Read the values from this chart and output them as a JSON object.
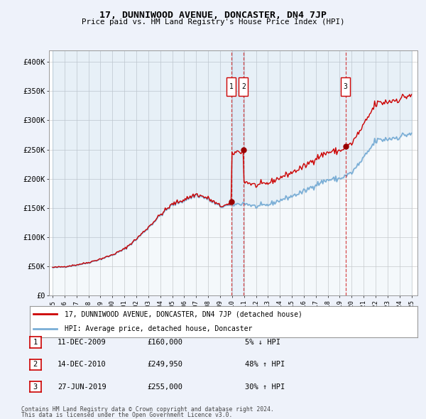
{
  "title": "17, DUNNIWOOD AVENUE, DONCASTER, DN4 7JP",
  "subtitle": "Price paid vs. HM Land Registry's House Price Index (HPI)",
  "legend_line1": "17, DUNNIWOOD AVENUE, DONCASTER, DN4 7JP (detached house)",
  "legend_line2": "HPI: Average price, detached house, Doncaster",
  "footer_line1": "Contains HM Land Registry data © Crown copyright and database right 2024.",
  "footer_line2": "This data is licensed under the Open Government Licence v3.0.",
  "transactions": [
    {
      "num": 1,
      "date": "11-DEC-2009",
      "price": "£160,000",
      "change": "5% ↓ HPI",
      "x_year": 2009.94
    },
    {
      "num": 2,
      "date": "14-DEC-2010",
      "price": "£249,950",
      "change": "48% ↑ HPI",
      "x_year": 2010.95
    },
    {
      "num": 3,
      "date": "27-JUN-2019",
      "price": "£255,000",
      "change": "30% ↑ HPI",
      "x_year": 2019.49
    }
  ],
  "ylabel_ticks": [
    "£0",
    "£50K",
    "£100K",
    "£150K",
    "£200K",
    "£250K",
    "£300K",
    "£350K",
    "£400K"
  ],
  "ytick_vals": [
    0,
    50000,
    100000,
    150000,
    200000,
    250000,
    300000,
    350000,
    400000
  ],
  "xlim": [
    1994.7,
    2025.5
  ],
  "ylim": [
    0,
    420000
  ],
  "bg_color": "#eef2fa",
  "plot_bg": "#ffffff",
  "red_line_color": "#cc0000",
  "blue_line_color": "#7aaed6",
  "fill_color": "#c8daf0",
  "grid_color": "#cccccc",
  "transaction_vline_colors": [
    "#cc0000",
    "#cc0000",
    "#cc0000"
  ],
  "transaction_fill_color": "#ddeeff"
}
